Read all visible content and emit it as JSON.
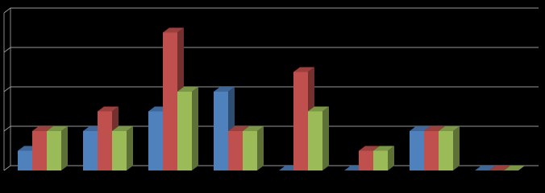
{
  "chart_data": {
    "type": "bar3d",
    "categories": [
      null,
      null,
      null,
      null,
      null,
      null,
      null,
      null
    ],
    "series": [
      {
        "color": "#4f81bd",
        "values": [
          0.5,
          1,
          1.5,
          2,
          0,
          0,
          1,
          0
        ]
      },
      {
        "color": "#c0504d",
        "values": [
          1,
          1.5,
          3.5,
          1,
          2.5,
          0.5,
          1,
          0
        ]
      },
      {
        "color": "#9bbb59",
        "values": [
          1,
          1,
          2,
          1,
          1.5,
          0.5,
          1,
          0
        ]
      }
    ],
    "ylim": [
      0,
      4
    ],
    "yticks": [
      0,
      1,
      2,
      3,
      4
    ],
    "grid": true
  }
}
